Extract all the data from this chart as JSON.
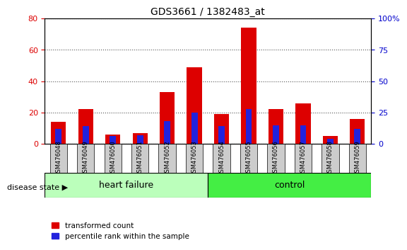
{
  "title": "GDS3661 / 1382483_at",
  "samples": [
    "GSM476048",
    "GSM476049",
    "GSM476050",
    "GSM476051",
    "GSM476052",
    "GSM476053",
    "GSM476054",
    "GSM476055",
    "GSM476056",
    "GSM476057",
    "GSM476058",
    "GSM476059"
  ],
  "transformed_count": [
    14,
    22,
    6,
    7,
    33,
    49,
    19,
    74,
    22,
    26,
    5,
    16
  ],
  "percentile_rank": [
    12,
    14,
    6,
    7,
    18,
    25,
    14,
    28,
    15,
    15,
    4,
    12
  ],
  "red_color": "#dd0000",
  "blue_color": "#2222dd",
  "heart_failure_count": 6,
  "control_count": 6,
  "group_heart_failure": "heart failure",
  "group_control": "control",
  "heart_failure_color": "#bbffbb",
  "control_color": "#44ee44",
  "ylim_left": [
    0,
    80
  ],
  "ylim_right": [
    0,
    100
  ],
  "yticks_left": [
    0,
    20,
    40,
    60,
    80
  ],
  "yticks_right": [
    0,
    25,
    50,
    75,
    100
  ],
  "disease_state_label": "disease state",
  "legend_red": "transformed count",
  "legend_blue": "percentile rank within the sample",
  "bar_width": 0.55,
  "tick_bg_color": "#cccccc",
  "dotted_grid_color": "#555555"
}
